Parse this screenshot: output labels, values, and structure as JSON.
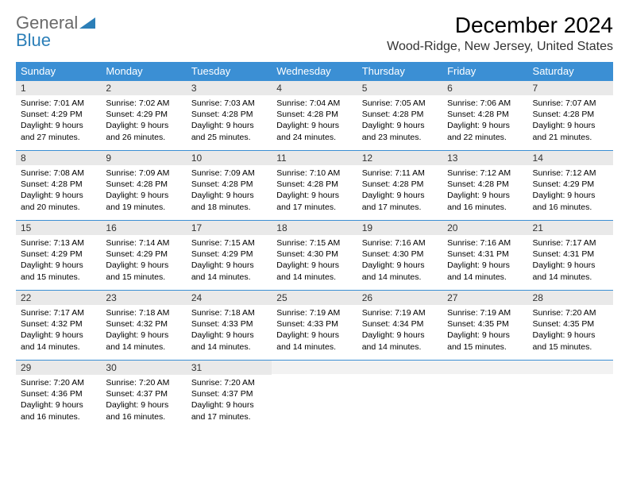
{
  "logo": {
    "text1": "General",
    "text2": "Blue"
  },
  "title": "December 2024",
  "location": "Wood-Ridge, New Jersey, United States",
  "colors": {
    "header_bg": "#3b8fd4",
    "header_text": "#ffffff",
    "daynum_bg": "#e9e9e9",
    "row_divider": "#3b8fd4",
    "background": "#ffffff",
    "text": "#000000",
    "logo_gray": "#6a6a6a",
    "logo_blue": "#2c7fb8"
  },
  "typography": {
    "title_fontsize": 28,
    "location_fontsize": 16,
    "weekday_fontsize": 13,
    "daynum_fontsize": 12,
    "body_fontsize": 10.5
  },
  "weekdays": [
    "Sunday",
    "Monday",
    "Tuesday",
    "Wednesday",
    "Thursday",
    "Friday",
    "Saturday"
  ],
  "weeks": [
    [
      {
        "n": "1",
        "sr": "Sunrise: 7:01 AM",
        "ss": "Sunset: 4:29 PM",
        "d1": "Daylight: 9 hours",
        "d2": "and 27 minutes."
      },
      {
        "n": "2",
        "sr": "Sunrise: 7:02 AM",
        "ss": "Sunset: 4:29 PM",
        "d1": "Daylight: 9 hours",
        "d2": "and 26 minutes."
      },
      {
        "n": "3",
        "sr": "Sunrise: 7:03 AM",
        "ss": "Sunset: 4:28 PM",
        "d1": "Daylight: 9 hours",
        "d2": "and 25 minutes."
      },
      {
        "n": "4",
        "sr": "Sunrise: 7:04 AM",
        "ss": "Sunset: 4:28 PM",
        "d1": "Daylight: 9 hours",
        "d2": "and 24 minutes."
      },
      {
        "n": "5",
        "sr": "Sunrise: 7:05 AM",
        "ss": "Sunset: 4:28 PM",
        "d1": "Daylight: 9 hours",
        "d2": "and 23 minutes."
      },
      {
        "n": "6",
        "sr": "Sunrise: 7:06 AM",
        "ss": "Sunset: 4:28 PM",
        "d1": "Daylight: 9 hours",
        "d2": "and 22 minutes."
      },
      {
        "n": "7",
        "sr": "Sunrise: 7:07 AM",
        "ss": "Sunset: 4:28 PM",
        "d1": "Daylight: 9 hours",
        "d2": "and 21 minutes."
      }
    ],
    [
      {
        "n": "8",
        "sr": "Sunrise: 7:08 AM",
        "ss": "Sunset: 4:28 PM",
        "d1": "Daylight: 9 hours",
        "d2": "and 20 minutes."
      },
      {
        "n": "9",
        "sr": "Sunrise: 7:09 AM",
        "ss": "Sunset: 4:28 PM",
        "d1": "Daylight: 9 hours",
        "d2": "and 19 minutes."
      },
      {
        "n": "10",
        "sr": "Sunrise: 7:09 AM",
        "ss": "Sunset: 4:28 PM",
        "d1": "Daylight: 9 hours",
        "d2": "and 18 minutes."
      },
      {
        "n": "11",
        "sr": "Sunrise: 7:10 AM",
        "ss": "Sunset: 4:28 PM",
        "d1": "Daylight: 9 hours",
        "d2": "and 17 minutes."
      },
      {
        "n": "12",
        "sr": "Sunrise: 7:11 AM",
        "ss": "Sunset: 4:28 PM",
        "d1": "Daylight: 9 hours",
        "d2": "and 17 minutes."
      },
      {
        "n": "13",
        "sr": "Sunrise: 7:12 AM",
        "ss": "Sunset: 4:28 PM",
        "d1": "Daylight: 9 hours",
        "d2": "and 16 minutes."
      },
      {
        "n": "14",
        "sr": "Sunrise: 7:12 AM",
        "ss": "Sunset: 4:29 PM",
        "d1": "Daylight: 9 hours",
        "d2": "and 16 minutes."
      }
    ],
    [
      {
        "n": "15",
        "sr": "Sunrise: 7:13 AM",
        "ss": "Sunset: 4:29 PM",
        "d1": "Daylight: 9 hours",
        "d2": "and 15 minutes."
      },
      {
        "n": "16",
        "sr": "Sunrise: 7:14 AM",
        "ss": "Sunset: 4:29 PM",
        "d1": "Daylight: 9 hours",
        "d2": "and 15 minutes."
      },
      {
        "n": "17",
        "sr": "Sunrise: 7:15 AM",
        "ss": "Sunset: 4:29 PM",
        "d1": "Daylight: 9 hours",
        "d2": "and 14 minutes."
      },
      {
        "n": "18",
        "sr": "Sunrise: 7:15 AM",
        "ss": "Sunset: 4:30 PM",
        "d1": "Daylight: 9 hours",
        "d2": "and 14 minutes."
      },
      {
        "n": "19",
        "sr": "Sunrise: 7:16 AM",
        "ss": "Sunset: 4:30 PM",
        "d1": "Daylight: 9 hours",
        "d2": "and 14 minutes."
      },
      {
        "n": "20",
        "sr": "Sunrise: 7:16 AM",
        "ss": "Sunset: 4:31 PM",
        "d1": "Daylight: 9 hours",
        "d2": "and 14 minutes."
      },
      {
        "n": "21",
        "sr": "Sunrise: 7:17 AM",
        "ss": "Sunset: 4:31 PM",
        "d1": "Daylight: 9 hours",
        "d2": "and 14 minutes."
      }
    ],
    [
      {
        "n": "22",
        "sr": "Sunrise: 7:17 AM",
        "ss": "Sunset: 4:32 PM",
        "d1": "Daylight: 9 hours",
        "d2": "and 14 minutes."
      },
      {
        "n": "23",
        "sr": "Sunrise: 7:18 AM",
        "ss": "Sunset: 4:32 PM",
        "d1": "Daylight: 9 hours",
        "d2": "and 14 minutes."
      },
      {
        "n": "24",
        "sr": "Sunrise: 7:18 AM",
        "ss": "Sunset: 4:33 PM",
        "d1": "Daylight: 9 hours",
        "d2": "and 14 minutes."
      },
      {
        "n": "25",
        "sr": "Sunrise: 7:19 AM",
        "ss": "Sunset: 4:33 PM",
        "d1": "Daylight: 9 hours",
        "d2": "and 14 minutes."
      },
      {
        "n": "26",
        "sr": "Sunrise: 7:19 AM",
        "ss": "Sunset: 4:34 PM",
        "d1": "Daylight: 9 hours",
        "d2": "and 14 minutes."
      },
      {
        "n": "27",
        "sr": "Sunrise: 7:19 AM",
        "ss": "Sunset: 4:35 PM",
        "d1": "Daylight: 9 hours",
        "d2": "and 15 minutes."
      },
      {
        "n": "28",
        "sr": "Sunrise: 7:20 AM",
        "ss": "Sunset: 4:35 PM",
        "d1": "Daylight: 9 hours",
        "d2": "and 15 minutes."
      }
    ],
    [
      {
        "n": "29",
        "sr": "Sunrise: 7:20 AM",
        "ss": "Sunset: 4:36 PM",
        "d1": "Daylight: 9 hours",
        "d2": "and 16 minutes."
      },
      {
        "n": "30",
        "sr": "Sunrise: 7:20 AM",
        "ss": "Sunset: 4:37 PM",
        "d1": "Daylight: 9 hours",
        "d2": "and 16 minutes."
      },
      {
        "n": "31",
        "sr": "Sunrise: 7:20 AM",
        "ss": "Sunset: 4:37 PM",
        "d1": "Daylight: 9 hours",
        "d2": "and 17 minutes."
      },
      {
        "empty": true
      },
      {
        "empty": true
      },
      {
        "empty": true
      },
      {
        "empty": true
      }
    ]
  ]
}
